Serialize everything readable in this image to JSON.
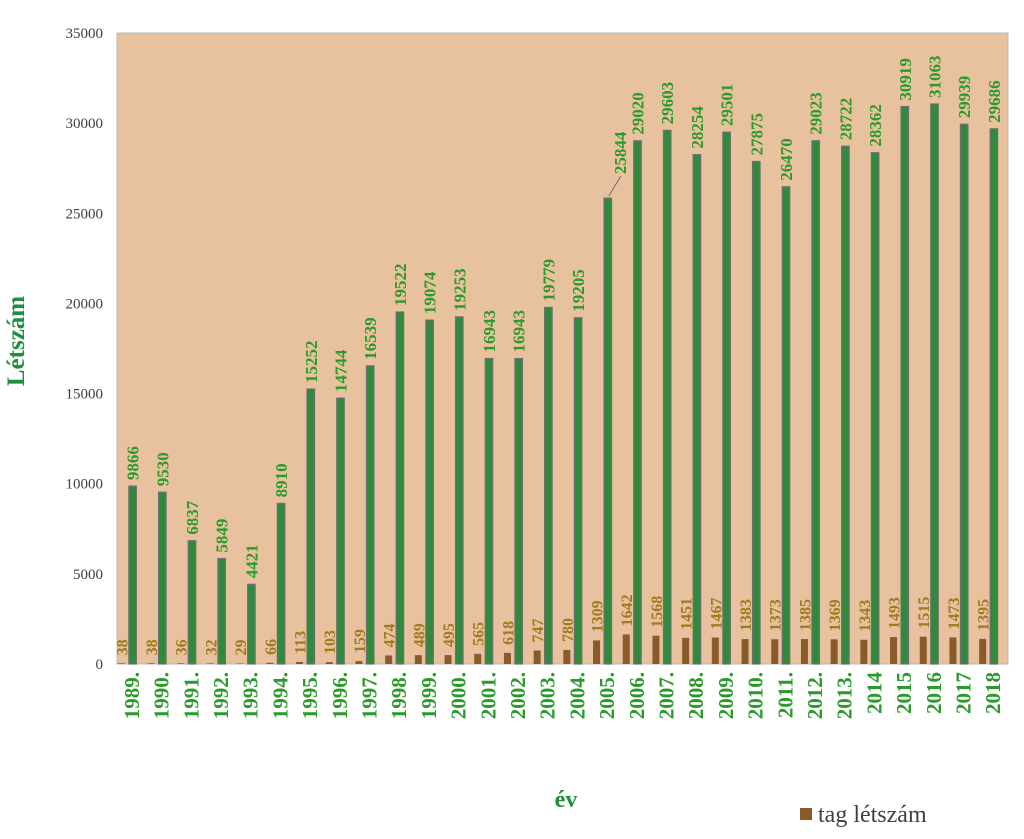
{
  "chart_data": {
    "type": "bar",
    "title": "",
    "xlabel": "év",
    "ylabel": "Létszám",
    "ylim": [
      0,
      35000
    ],
    "yticks": [
      "0",
      "5000",
      "10000",
      "15000",
      "20000",
      "25000",
      "30000",
      "35000"
    ],
    "grid": false,
    "legend_position": "bottom-right",
    "categories": [
      "1989.",
      "1990.",
      "1991.",
      "1992.",
      "1993.",
      "1994.",
      "1995.",
      "1996.",
      "1997.",
      "1998.",
      "1999.",
      "2000.",
      "2001.",
      "2002.",
      "2003.",
      "2004.",
      "2005.",
      "2006.",
      "2007.",
      "2008.",
      "2009.",
      "2010.",
      "2011.",
      "2012.",
      "2013.",
      "2014",
      "2015",
      "2016",
      "2017",
      "2018"
    ],
    "series": [
      {
        "color": "#2e8b3e",
        "values": [
          9866,
          9530,
          6837,
          5849,
          4421,
          8910,
          15252,
          14744,
          16539,
          19522,
          19074,
          19253,
          16943,
          16943,
          19779,
          19205,
          25844,
          29020,
          29603,
          28254,
          29501,
          27875,
          26470,
          29023,
          28722,
          28362,
          30919,
          31063,
          29939,
          29686
        ]
      },
      {
        "name": "tag létszám",
        "color": "#8b5a2b",
        "values": [
          38,
          38,
          36,
          32,
          29,
          66,
          113,
          103,
          159,
          474,
          489,
          495,
          565,
          618,
          747,
          780,
          1309,
          1642,
          1568,
          1451,
          1467,
          1383,
          1373,
          1385,
          1369,
          1343,
          1493,
          1515,
          1473,
          1395
        ]
      }
    ]
  },
  "colors": {
    "plot_background": "#e8c19e",
    "main_bar": "#2e8b3e",
    "main_bar_edge": "#6f6f6f",
    "main_label": "#2a9b2a",
    "tag_bar": "#8b5a2b",
    "tag_label": "#a07a1e",
    "axis_title": "#1e8f3c"
  }
}
